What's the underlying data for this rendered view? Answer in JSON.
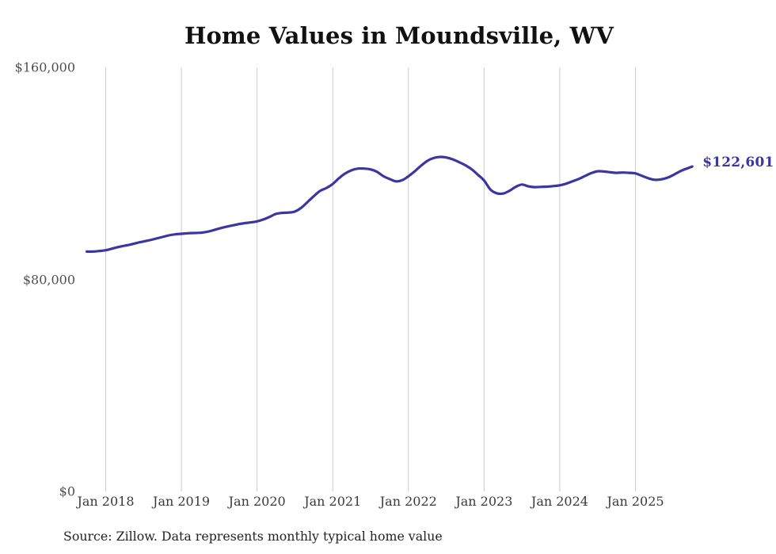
{
  "title": "Home Values in Moundsville, WV",
  "source_note": "Source: Zillow. Data represents monthly typical home value",
  "colors": {
    "line": "#3a36a2",
    "grid": "#cccccc",
    "axis_text": "#505050",
    "title_text": "#111111",
    "end_label": "#3a36a2"
  },
  "chart_data": {
    "type": "line",
    "title": "Home Values in Moundsville, WV",
    "x_start": "Oct 2017",
    "x_end": "Oct 2025",
    "frequency": "monthly",
    "ylim": [
      0,
      160000
    ],
    "grid": "vertical-only",
    "y_ticks": [
      {
        "value": 0,
        "label": "$0"
      },
      {
        "value": 80000,
        "label": "$80,000"
      },
      {
        "value": 160000,
        "label": "$160,000"
      }
    ],
    "x_ticks": [
      {
        "month_index": 3,
        "label": "Jan 2018"
      },
      {
        "month_index": 15,
        "label": "Jan 2019"
      },
      {
        "month_index": 27,
        "label": "Jan 2020"
      },
      {
        "month_index": 39,
        "label": "Jan 2021"
      },
      {
        "month_index": 51,
        "label": "Jan 2022"
      },
      {
        "month_index": 63,
        "label": "Jan 2023"
      },
      {
        "month_index": 75,
        "label": "Jan 2024"
      },
      {
        "month_index": 87,
        "label": "Jan 2025"
      }
    ],
    "values": [
      90500,
      90500,
      90700,
      91000,
      91600,
      92200,
      92700,
      93200,
      93800,
      94300,
      94800,
      95400,
      96000,
      96600,
      97000,
      97200,
      97400,
      97500,
      97600,
      97900,
      98500,
      99200,
      99800,
      100300,
      100800,
      101200,
      101500,
      101900,
      102600,
      103600,
      104700,
      105100,
      105200,
      105600,
      107000,
      109200,
      111400,
      113400,
      114500,
      116000,
      118200,
      120000,
      121200,
      121800,
      121800,
      121500,
      120600,
      119000,
      117900,
      117000,
      117400,
      118900,
      120800,
      122900,
      124700,
      125800,
      126200,
      126000,
      125300,
      124300,
      123100,
      121600,
      119500,
      117300,
      113900,
      112500,
      112400,
      113400,
      114900,
      115800,
      115100,
      114800,
      114900,
      115000,
      115200,
      115500,
      116100,
      117000,
      117900,
      119000,
      120100,
      120800,
      120700,
      120400,
      120200,
      120300,
      120200,
      120000,
      119100,
      118200,
      117600,
      117700,
      118300,
      119400,
      120700,
      121700,
      122601
    ],
    "final_value": 122601,
    "final_value_label": "$122,601"
  }
}
